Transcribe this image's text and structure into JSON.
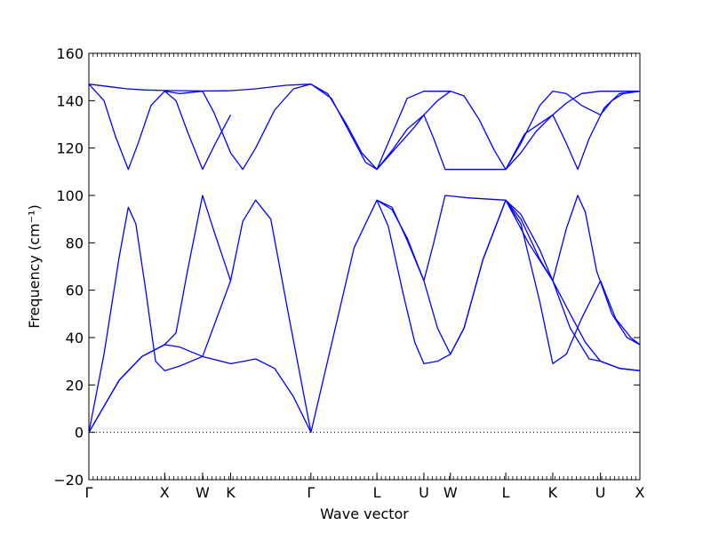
{
  "chart_data": {
    "type": "line",
    "title": "",
    "xlabel": "Wave vector",
    "ylabel": "Frequency (cm⁻¹)",
    "ylim": [
      -20,
      160
    ],
    "yticks": [
      -20,
      0,
      20,
      40,
      60,
      80,
      100,
      120,
      140,
      160
    ],
    "xlim": [
      0,
      7.27
    ],
    "high_symmetry_points": [
      {
        "label": "Γ",
        "x": 0.0
      },
      {
        "label": "X",
        "x": 1.0
      },
      {
        "label": "W",
        "x": 1.5
      },
      {
        "label": "K",
        "x": 1.87
      },
      {
        "label": "Γ",
        "x": 2.93
      },
      {
        "label": "L",
        "x": 3.8
      },
      {
        "label": "U",
        "x": 4.42
      },
      {
        "label": "W",
        "x": 4.77
      },
      {
        "label": "L",
        "x": 5.5
      },
      {
        "label": "K",
        "x": 6.12
      },
      {
        "label": "U",
        "x": 6.75
      },
      {
        "label": "X",
        "x": 7.27
      }
    ],
    "zero_line": true,
    "line_color": "#0000ff",
    "series": [
      {
        "points": [
          [
            0,
            147
          ],
          [
            0.25,
            146
          ],
          [
            0.5,
            145
          ],
          [
            0.75,
            144.5
          ],
          [
            1.0,
            144.3
          ],
          [
            1.25,
            144.2
          ],
          [
            1.5,
            144.1
          ],
          [
            1.87,
            144.2
          ],
          [
            2.2,
            145
          ],
          [
            2.6,
            146.5
          ],
          [
            2.93,
            147
          ],
          [
            3.15,
            143
          ],
          [
            3.4,
            130
          ],
          [
            3.6,
            118
          ],
          [
            3.8,
            111
          ],
          [
            4.0,
            119
          ],
          [
            4.2,
            128
          ],
          [
            4.42,
            134
          ],
          [
            4.6,
            140
          ],
          [
            4.77,
            144
          ],
          [
            4.95,
            142
          ],
          [
            5.15,
            132
          ],
          [
            5.35,
            119
          ],
          [
            5.5,
            111
          ],
          [
            5.7,
            118
          ],
          [
            5.9,
            127
          ],
          [
            6.12,
            134
          ],
          [
            6.3,
            139
          ],
          [
            6.5,
            143
          ],
          [
            6.75,
            144
          ],
          [
            7.0,
            144
          ],
          [
            7.27,
            144
          ]
        ]
      },
      {
        "points": [
          [
            0,
            147
          ],
          [
            0.2,
            140
          ],
          [
            0.35,
            125
          ],
          [
            0.52,
            111
          ],
          [
            0.65,
            122
          ],
          [
            0.82,
            138
          ],
          [
            1.0,
            144
          ],
          [
            1.15,
            140
          ],
          [
            1.3,
            127
          ],
          [
            1.5,
            111
          ],
          [
            1.67,
            122
          ],
          [
            1.87,
            134
          ]
        ]
      },
      {
        "points": [
          [
            1.0,
            144
          ],
          [
            1.2,
            143
          ],
          [
            1.5,
            144
          ],
          [
            1.65,
            135
          ],
          [
            1.87,
            118
          ],
          [
            2.03,
            111
          ],
          [
            2.2,
            120
          ],
          [
            2.45,
            136
          ],
          [
            2.7,
            145
          ],
          [
            2.93,
            147
          ],
          [
            3.2,
            141
          ],
          [
            3.45,
            126
          ],
          [
            3.65,
            114
          ],
          [
            3.8,
            111
          ],
          [
            4.0,
            126
          ],
          [
            4.2,
            141
          ],
          [
            4.42,
            144
          ],
          [
            4.77,
            144
          ]
        ]
      },
      {
        "points": [
          [
            3.8,
            111
          ],
          [
            4.05,
            120
          ],
          [
            4.3,
            129
          ],
          [
            4.42,
            134
          ],
          [
            4.55,
            124
          ],
          [
            4.7,
            111
          ],
          [
            5.0,
            111
          ],
          [
            5.5,
            111
          ],
          [
            5.7,
            122
          ],
          [
            5.95,
            138
          ],
          [
            6.12,
            144
          ],
          [
            6.3,
            143
          ],
          [
            6.5,
            138
          ],
          [
            6.75,
            134
          ],
          [
            6.9,
            140
          ],
          [
            7.05,
            143
          ],
          [
            7.27,
            144
          ]
        ]
      },
      {
        "points": [
          [
            5.5,
            111
          ],
          [
            5.75,
            126
          ],
          [
            6.12,
            134
          ],
          [
            6.3,
            122
          ],
          [
            6.45,
            111
          ],
          [
            6.6,
            124
          ],
          [
            6.8,
            137
          ],
          [
            7.0,
            143
          ],
          [
            7.27,
            144
          ]
        ]
      },
      {
        "points": [
          [
            0,
            0
          ],
          [
            0.2,
            33
          ],
          [
            0.4,
            74
          ],
          [
            0.52,
            95
          ],
          [
            0.62,
            88
          ],
          [
            0.75,
            60
          ],
          [
            0.88,
            30
          ],
          [
            1.0,
            26
          ],
          [
            1.2,
            28
          ],
          [
            1.5,
            32
          ],
          [
            1.87,
            29
          ],
          [
            2.05,
            30
          ],
          [
            2.2,
            31
          ],
          [
            2.45,
            27
          ],
          [
            2.7,
            15
          ],
          [
            2.93,
            0
          ]
        ]
      },
      {
        "points": [
          [
            0,
            0
          ],
          [
            0.4,
            22
          ],
          [
            0.7,
            32
          ],
          [
            1.0,
            37
          ],
          [
            1.2,
            36
          ],
          [
            1.5,
            32
          ],
          [
            1.87,
            64
          ],
          [
            2.03,
            89
          ],
          [
            2.2,
            98
          ],
          [
            2.4,
            90
          ],
          [
            2.65,
            47
          ],
          [
            2.93,
            0
          ]
        ]
      },
      {
        "points": [
          [
            0,
            0
          ],
          [
            0.4,
            22
          ],
          [
            0.7,
            32
          ],
          [
            1.0,
            37
          ],
          [
            1.15,
            42
          ],
          [
            1.3,
            68
          ],
          [
            1.5,
            100
          ],
          [
            1.65,
            85
          ],
          [
            1.87,
            64
          ]
        ]
      },
      {
        "points": [
          [
            2.93,
            0
          ],
          [
            3.2,
            37
          ],
          [
            3.5,
            78
          ],
          [
            3.8,
            98
          ],
          [
            4.0,
            95
          ],
          [
            4.2,
            81
          ],
          [
            4.42,
            64
          ],
          [
            4.6,
            44
          ],
          [
            4.77,
            33
          ],
          [
            4.95,
            44
          ],
          [
            5.2,
            73
          ],
          [
            5.5,
            98
          ],
          [
            5.7,
            92
          ],
          [
            5.95,
            77
          ],
          [
            6.12,
            64
          ],
          [
            6.35,
            44
          ],
          [
            6.6,
            31
          ],
          [
            6.75,
            30
          ],
          [
            7.0,
            27
          ],
          [
            7.27,
            26
          ]
        ]
      },
      {
        "points": [
          [
            3.8,
            98
          ],
          [
            3.95,
            87
          ],
          [
            4.15,
            58
          ],
          [
            4.3,
            38
          ],
          [
            4.42,
            29
          ],
          [
            4.6,
            30
          ],
          [
            4.77,
            33
          ],
          [
            4.95,
            44
          ],
          [
            5.2,
            73
          ],
          [
            5.5,
            98
          ]
        ]
      },
      {
        "points": [
          [
            3.8,
            98
          ],
          [
            4.0,
            94
          ],
          [
            4.2,
            82
          ],
          [
            4.42,
            64
          ],
          [
            4.55,
            80
          ],
          [
            4.7,
            100
          ],
          [
            5.0,
            99
          ],
          [
            5.5,
            98
          ],
          [
            5.7,
            88
          ],
          [
            5.95,
            55
          ],
          [
            6.12,
            29
          ],
          [
            6.3,
            33
          ],
          [
            6.5,
            48
          ],
          [
            6.75,
            64
          ],
          [
            6.95,
            48
          ],
          [
            7.15,
            40
          ],
          [
            7.27,
            37
          ]
        ]
      },
      {
        "points": [
          [
            5.5,
            98
          ],
          [
            5.7,
            90
          ],
          [
            5.95,
            73
          ],
          [
            6.12,
            64
          ],
          [
            6.3,
            86
          ],
          [
            6.45,
            100
          ],
          [
            6.55,
            93
          ],
          [
            6.7,
            68
          ],
          [
            6.9,
            50
          ],
          [
            7.1,
            40
          ],
          [
            7.27,
            37
          ]
        ]
      },
      {
        "points": [
          [
            5.5,
            98
          ],
          [
            5.8,
            80
          ],
          [
            6.12,
            64
          ],
          [
            6.35,
            50
          ],
          [
            6.55,
            38
          ],
          [
            6.75,
            30
          ],
          [
            7.0,
            27
          ],
          [
            7.27,
            26
          ]
        ]
      }
    ]
  }
}
